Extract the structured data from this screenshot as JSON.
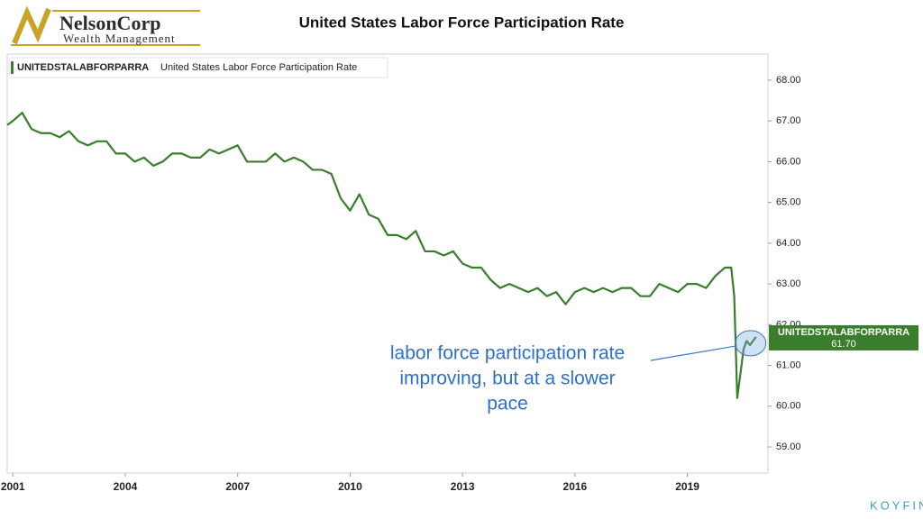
{
  "logo": {
    "name": "NelsonCorp",
    "tagline": "Wealth Management"
  },
  "brand": "KOYFIN",
  "chart_data": {
    "type": "line",
    "title": "United States Labor Force Participation Rate",
    "legend": {
      "description": "United States Labor Force Participation Rate"
    },
    "annotation": [
      "labor force participation rate",
      "improving, but at a slower",
      "pace"
    ],
    "last_label": "61.70",
    "x": [
      2000.85,
      2001.0,
      2001.25,
      2001.5,
      2001.75,
      2002.0,
      2002.25,
      2002.5,
      2002.75,
      2003.0,
      2003.25,
      2003.5,
      2003.75,
      2004.0,
      2004.25,
      2004.5,
      2004.75,
      2005.0,
      2005.25,
      2005.5,
      2005.75,
      2006.0,
      2006.25,
      2006.5,
      2006.75,
      2007.0,
      2007.25,
      2007.5,
      2007.75,
      2008.0,
      2008.25,
      2008.5,
      2008.75,
      2009.0,
      2009.25,
      2009.5,
      2009.75,
      2010.0,
      2010.25,
      2010.5,
      2010.75,
      2011.0,
      2011.25,
      2011.5,
      2011.75,
      2012.0,
      2012.25,
      2012.5,
      2012.75,
      2013.0,
      2013.25,
      2013.5,
      2013.75,
      2014.0,
      2014.25,
      2014.5,
      2014.75,
      2015.0,
      2015.25,
      2015.5,
      2015.75,
      2016.0,
      2016.25,
      2016.5,
      2016.75,
      2017.0,
      2017.25,
      2017.5,
      2017.75,
      2018.0,
      2018.25,
      2018.5,
      2018.75,
      2019.0,
      2019.25,
      2019.5,
      2019.75,
      2020.0,
      2020.17,
      2020.25,
      2020.33,
      2020.5,
      2020.58,
      2020.67,
      2020.83
    ],
    "series": [
      {
        "name": "UNITEDSTALABFORPARRA",
        "color": "#3a7d2c",
        "values": [
          66.9,
          67.0,
          67.2,
          66.8,
          66.7,
          66.7,
          66.6,
          66.75,
          66.5,
          66.4,
          66.5,
          66.5,
          66.2,
          66.2,
          66.0,
          66.1,
          65.9,
          66.0,
          66.2,
          66.2,
          66.1,
          66.1,
          66.3,
          66.2,
          66.3,
          66.4,
          66.0,
          66.0,
          66.0,
          66.2,
          66.0,
          66.1,
          66.0,
          65.8,
          65.8,
          65.7,
          65.1,
          64.8,
          65.2,
          64.7,
          64.6,
          64.2,
          64.2,
          64.1,
          64.3,
          63.8,
          63.8,
          63.7,
          63.8,
          63.5,
          63.4,
          63.4,
          63.1,
          62.9,
          63.0,
          62.9,
          62.8,
          62.9,
          62.7,
          62.8,
          62.5,
          62.8,
          62.9,
          62.8,
          62.9,
          62.8,
          62.9,
          62.9,
          62.7,
          62.7,
          63.0,
          62.9,
          62.8,
          63.0,
          63.0,
          62.9,
          63.2,
          63.4,
          63.4,
          62.7,
          60.2,
          61.4,
          61.6,
          61.5,
          61.7
        ]
      }
    ],
    "xlim": [
      2000.85,
      2021.15
    ],
    "xticks": [
      2001,
      2004,
      2007,
      2010,
      2013,
      2016,
      2019
    ],
    "ylim": [
      58.36,
      68.64
    ],
    "yticks": [
      {
        "value": 59,
        "label": "59.00"
      },
      {
        "value": 60,
        "label": "60.00"
      },
      {
        "value": 61,
        "label": "61.00"
      },
      {
        "value": 62,
        "label": "62.00"
      },
      {
        "value": 63,
        "label": "63.00"
      },
      {
        "value": 64,
        "label": "64.00"
      },
      {
        "value": 65,
        "label": "65.00"
      },
      {
        "value": 66,
        "label": "66.00"
      },
      {
        "value": 67,
        "label": "67.00"
      },
      {
        "value": 68,
        "label": "68.00"
      }
    ],
    "grid": false
  }
}
